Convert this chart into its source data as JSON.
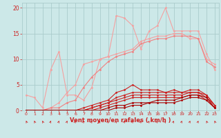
{
  "x": [
    0,
    1,
    2,
    3,
    4,
    5,
    6,
    7,
    8,
    9,
    10,
    11,
    12,
    13,
    14,
    15,
    16,
    17,
    18,
    19,
    20,
    21,
    22,
    23
  ],
  "lines": [
    {
      "color": "#f4a0a0",
      "lw": 0.8,
      "marker": "o",
      "markersize": 2.0,
      "y": [
        3.0,
        2.5,
        0.5,
        8.0,
        11.5,
        3.0,
        3.0,
        2.0,
        4.5,
        10.0,
        10.5,
        18.5,
        18.0,
        16.5,
        12.0,
        15.5,
        16.5,
        20.0,
        15.5,
        15.5,
        15.5,
        15.5,
        11.0,
        8.0
      ]
    },
    {
      "color": "#f4a0a0",
      "lw": 0.8,
      "marker": "o",
      "markersize": 2.0,
      "y": [
        0.0,
        0.0,
        0.0,
        0.5,
        1.5,
        3.5,
        5.0,
        9.0,
        9.5,
        10.0,
        10.5,
        11.0,
        11.5,
        12.0,
        13.5,
        14.0,
        14.5,
        14.5,
        15.0,
        15.0,
        14.0,
        14.0,
        10.0,
        9.0
      ]
    },
    {
      "color": "#f08080",
      "lw": 0.8,
      "marker": "o",
      "markersize": 2.0,
      "y": [
        0.0,
        0.0,
        0.0,
        0.5,
        0.5,
        1.5,
        2.0,
        4.5,
        6.5,
        8.0,
        9.5,
        10.5,
        11.0,
        11.5,
        13.0,
        13.5,
        14.0,
        14.0,
        14.5,
        14.5,
        14.5,
        14.0,
        9.5,
        8.5
      ]
    },
    {
      "color": "#cc2020",
      "lw": 0.8,
      "marker": "o",
      "markersize": 2.0,
      "y": [
        0.0,
        0.0,
        0.0,
        0.0,
        0.0,
        0.0,
        0.0,
        0.5,
        1.0,
        1.5,
        2.0,
        3.5,
        4.0,
        5.0,
        4.0,
        4.0,
        4.0,
        3.5,
        4.0,
        3.5,
        4.0,
        4.0,
        3.0,
        1.0
      ]
    },
    {
      "color": "#cc2020",
      "lw": 0.8,
      "marker": "o",
      "markersize": 2.0,
      "y": [
        0.0,
        0.0,
        0.0,
        0.0,
        0.0,
        0.0,
        0.0,
        0.0,
        0.5,
        1.0,
        1.5,
        2.5,
        3.0,
        3.5,
        3.5,
        3.5,
        3.5,
        3.5,
        3.5,
        3.5,
        3.5,
        3.5,
        3.0,
        1.0
      ]
    },
    {
      "color": "#cc2020",
      "lw": 0.8,
      "marker": "o",
      "markersize": 2.0,
      "y": [
        0.0,
        0.0,
        0.0,
        0.0,
        0.0,
        0.0,
        0.0,
        0.0,
        0.5,
        1.0,
        1.5,
        2.0,
        2.5,
        3.0,
        3.0,
        3.0,
        3.0,
        3.0,
        3.0,
        3.0,
        3.5,
        3.5,
        2.5,
        1.0
      ]
    },
    {
      "color": "#cc2020",
      "lw": 0.8,
      "marker": "o",
      "markersize": 2.0,
      "y": [
        0.0,
        0.0,
        0.0,
        0.0,
        0.0,
        0.0,
        0.0,
        0.0,
        0.0,
        0.5,
        1.0,
        1.5,
        2.0,
        2.5,
        2.5,
        2.5,
        2.5,
        2.5,
        2.5,
        2.5,
        3.0,
        3.0,
        2.0,
        0.5
      ]
    },
    {
      "color": "#aa0000",
      "lw": 0.8,
      "marker": "o",
      "markersize": 2.0,
      "y": [
        0.0,
        0.0,
        0.0,
        0.0,
        0.0,
        0.0,
        0.0,
        0.0,
        0.0,
        0.0,
        0.5,
        1.0,
        1.0,
        1.5,
        1.5,
        1.5,
        2.0,
        2.0,
        2.0,
        2.5,
        3.0,
        3.0,
        2.5,
        0.5
      ]
    },
    {
      "color": "#aa0000",
      "lw": 0.8,
      "marker": "o",
      "markersize": 2.0,
      "y": [
        0.0,
        0.0,
        0.0,
        0.0,
        0.0,
        0.0,
        0.0,
        0.0,
        0.0,
        0.0,
        0.0,
        0.5,
        0.5,
        1.0,
        1.0,
        1.5,
        1.5,
        1.5,
        1.5,
        2.0,
        2.5,
        2.5,
        2.0,
        0.5
      ]
    }
  ],
  "bg_color": "#cce8e8",
  "grid_color": "#aacccc",
  "axis_color": "#cc2020",
  "xlabel": "Vent moyen/en rafales ( km/h )",
  "xlim": [
    -0.5,
    23.5
  ],
  "ylim": [
    0,
    21
  ],
  "yticks": [
    0,
    5,
    10,
    15,
    20
  ],
  "xticks": [
    0,
    1,
    2,
    3,
    4,
    5,
    6,
    7,
    8,
    9,
    10,
    11,
    12,
    13,
    14,
    15,
    16,
    17,
    18,
    19,
    20,
    21,
    22,
    23
  ],
  "wind_dirs": [
    228,
    228,
    228,
    48,
    48,
    48,
    48,
    48,
    48,
    48,
    318,
    318,
    318,
    318,
    318,
    318,
    318,
    318,
    318,
    318,
    318,
    318,
    228,
    228
  ]
}
